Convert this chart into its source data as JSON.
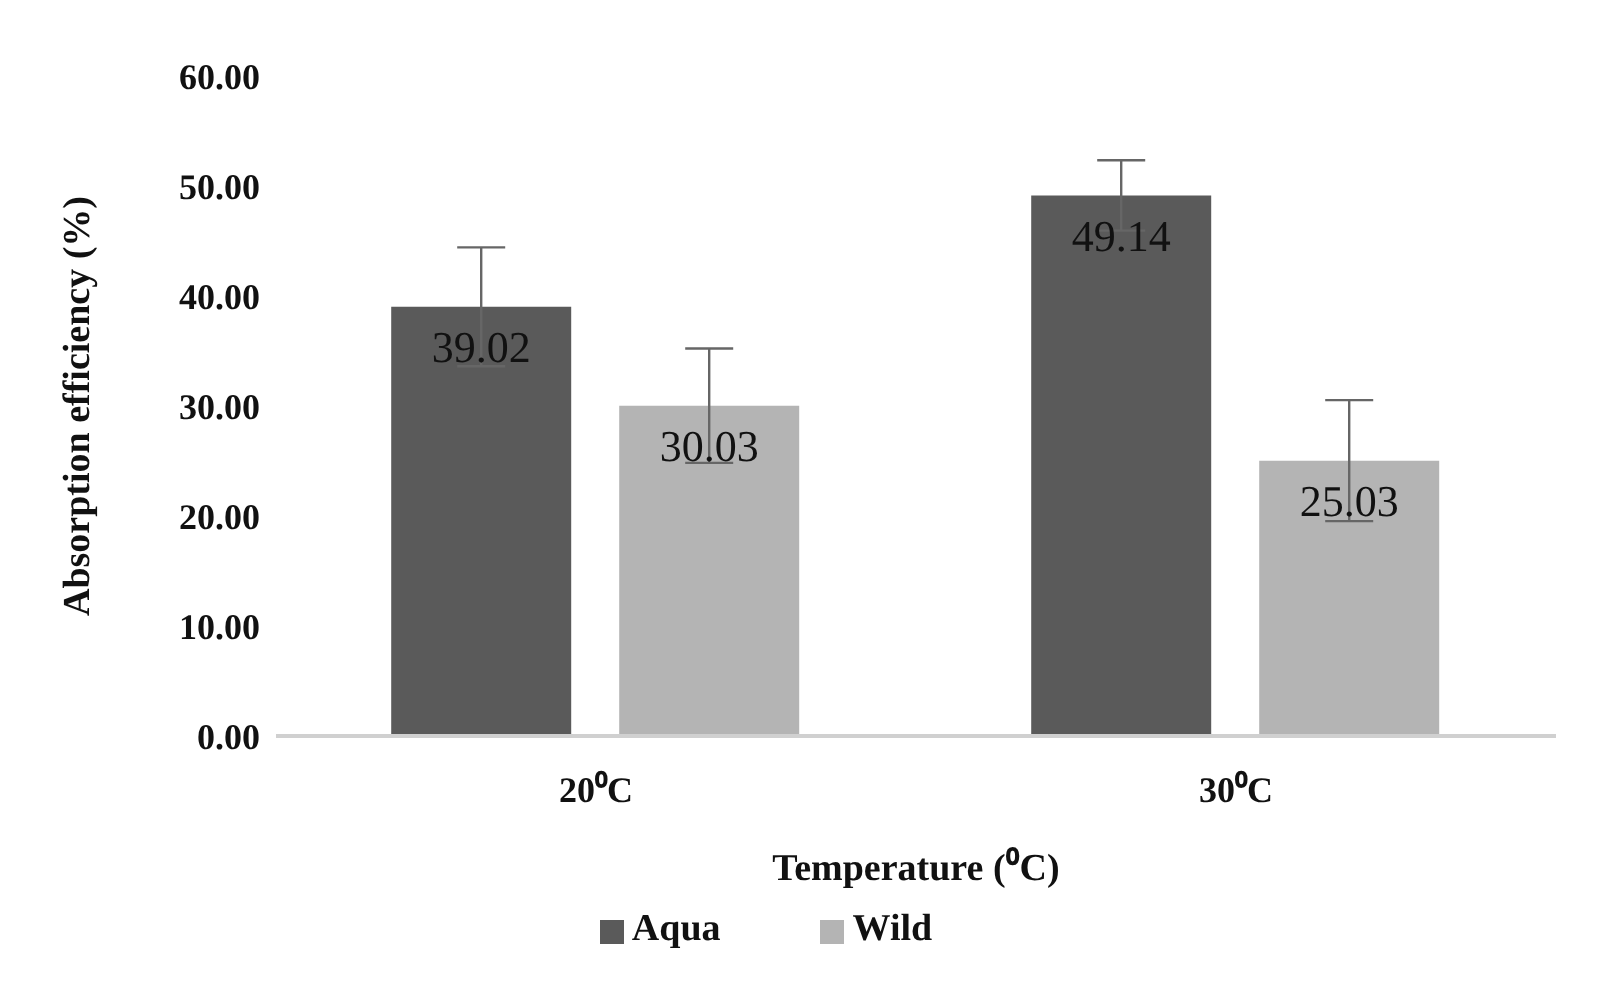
{
  "chart_data": {
    "type": "bar",
    "xlabel": "Temperature (⁰C)",
    "ylabel": "Absorption efficiency (%)",
    "categories": [
      "20⁰C",
      "30⁰C"
    ],
    "series": [
      {
        "name": "Aqua",
        "color": "#5a5a5a",
        "values": [
          39.02,
          49.14
        ],
        "errors": [
          5.4,
          3.2
        ]
      },
      {
        "name": "Wild",
        "color": "#b4b4b4",
        "values": [
          30.03,
          25.03
        ],
        "errors": [
          5.2,
          5.5
        ]
      }
    ],
    "ylim": [
      0,
      60
    ],
    "yticks": [
      {
        "value": 0,
        "label": "0.00"
      },
      {
        "value": 10,
        "label": "10.00"
      },
      {
        "value": 20,
        "label": "20.00"
      },
      {
        "value": 30,
        "label": "30.00"
      },
      {
        "value": 40,
        "label": "40.00"
      },
      {
        "value": 50,
        "label": "50.00"
      },
      {
        "value": 60,
        "label": "60.00"
      }
    ],
    "data_labels": true,
    "grid": false,
    "legend": "bottom"
  }
}
